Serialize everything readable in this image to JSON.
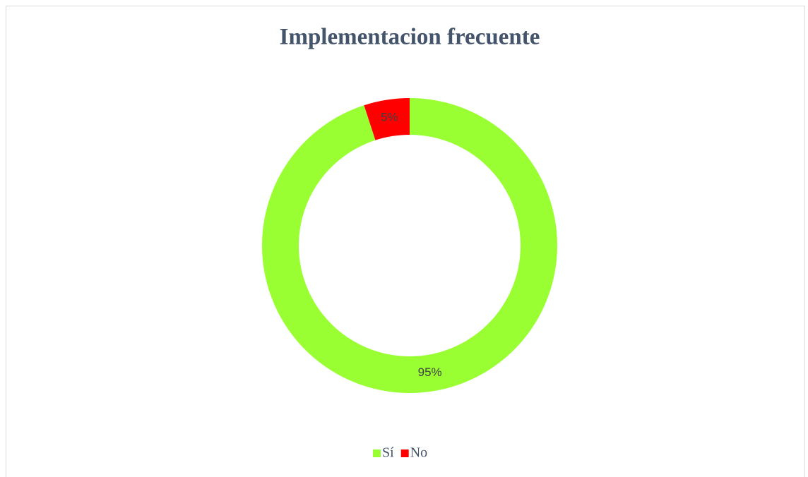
{
  "chart_data": {
    "type": "donut",
    "title": "Implementacion frecuente",
    "categories": [
      "Sí",
      "No"
    ],
    "values": [
      95,
      5
    ],
    "value_labels": [
      "95%",
      "5%"
    ],
    "colors": [
      "#99ff33",
      "#ff0000"
    ],
    "legend": "bottom"
  }
}
